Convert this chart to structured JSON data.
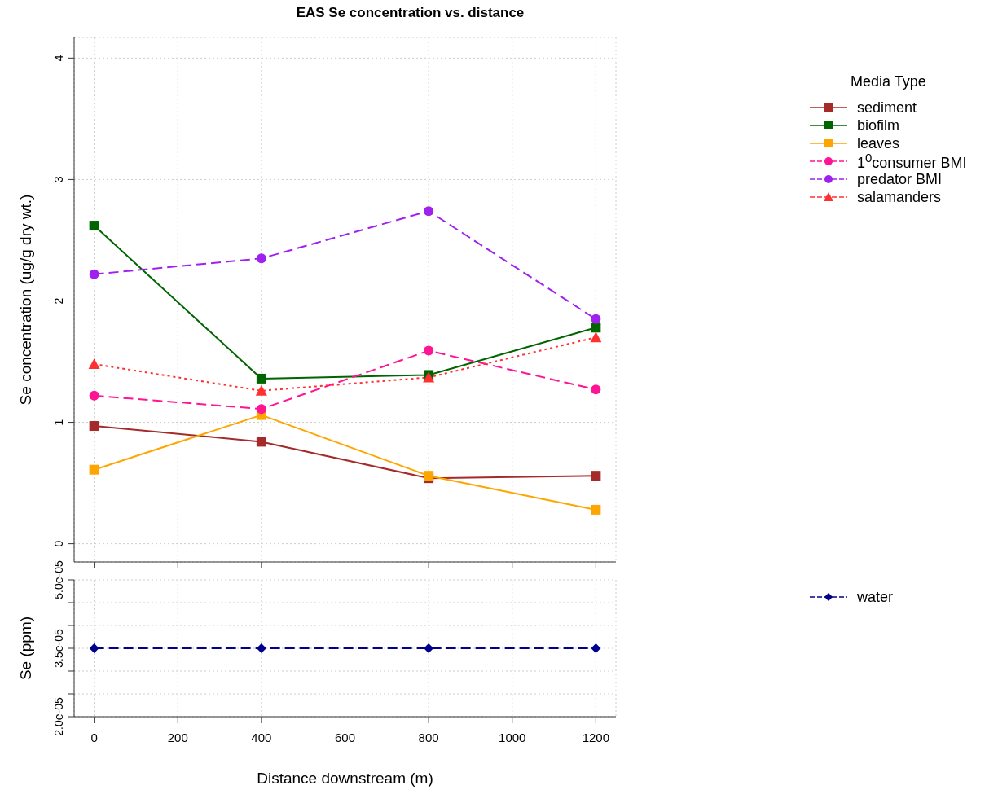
{
  "chart_data": [
    {
      "type": "line",
      "title": "EAS Se concentration vs. distance",
      "ylabel": "Se concentration (ug/g dry wt.)",
      "legend_title": "Media Type",
      "x": [
        0,
        400,
        800,
        1200
      ],
      "xlim": [
        -48,
        1248
      ],
      "xticks": [
        0,
        200,
        400,
        600,
        800,
        1000,
        1200
      ],
      "ylim": [
        -0.15,
        4.17
      ],
      "yticks": [
        0,
        1,
        2,
        3,
        4
      ],
      "grid": true,
      "legend": "right",
      "tick_labels": "y",
      "series": [
        {
          "name": "sediment",
          "color": "#a52a2a",
          "marker": "square",
          "line_style": "solid",
          "values": [
            0.97,
            0.84,
            0.54,
            0.56
          ]
        },
        {
          "name": "biofilm",
          "color": "#006400",
          "marker": "square",
          "line_style": "solid",
          "values": [
            2.62,
            1.36,
            1.39,
            1.78
          ]
        },
        {
          "name": "leaves",
          "color": "#ffa500",
          "marker": "square",
          "line_style": "solid",
          "values": [
            0.61,
            1.06,
            0.56,
            0.28
          ]
        },
        {
          "name": "1$^{0}$consumer BMI",
          "color": "#ff1493",
          "marker": "circle",
          "line_style": "dashed",
          "values": [
            1.22,
            1.11,
            1.59,
            1.27
          ]
        },
        {
          "name": "predator BMI",
          "color": "#a020f0",
          "marker": "circle",
          "line_style": "dashed",
          "values": [
            2.22,
            2.35,
            2.74,
            1.85
          ]
        },
        {
          "name": "salamanders",
          "color": "#ff3030",
          "marker": "triangle",
          "line_style": "dotted",
          "values": [
            1.48,
            1.26,
            1.37,
            1.7
          ]
        }
      ]
    },
    {
      "type": "line",
      "xlabel": "Distance downstream (m)",
      "ylabel": "Se (ppm)",
      "x": [
        0,
        400,
        800,
        1200
      ],
      "xlim": [
        -48,
        1248
      ],
      "xticks": [
        0,
        200,
        400,
        600,
        800,
        1000,
        1200
      ],
      "ylim": [
        2e-05,
        5e-05
      ],
      "yticks": [
        {
          "value": 2e-05,
          "label": "2.0e-05"
        },
        {
          "value": 2.5e-05,
          "label": null
        },
        {
          "value": 3e-05,
          "label": null
        },
        {
          "value": 3.5e-05,
          "label": "3.5e-05"
        },
        {
          "value": 4e-05,
          "label": null
        },
        {
          "value": 4.5e-05,
          "label": null
        },
        {
          "value": 5e-05,
          "label": "5.0e-05"
        }
      ],
      "grid": true,
      "legend": "right",
      "series": [
        {
          "name": "water",
          "color": "#00008b",
          "marker": "diamond",
          "line_style": "dashed",
          "values": [
            3.5e-05,
            3.5e-05,
            3.5e-05,
            3.5e-05
          ]
        }
      ]
    }
  ]
}
